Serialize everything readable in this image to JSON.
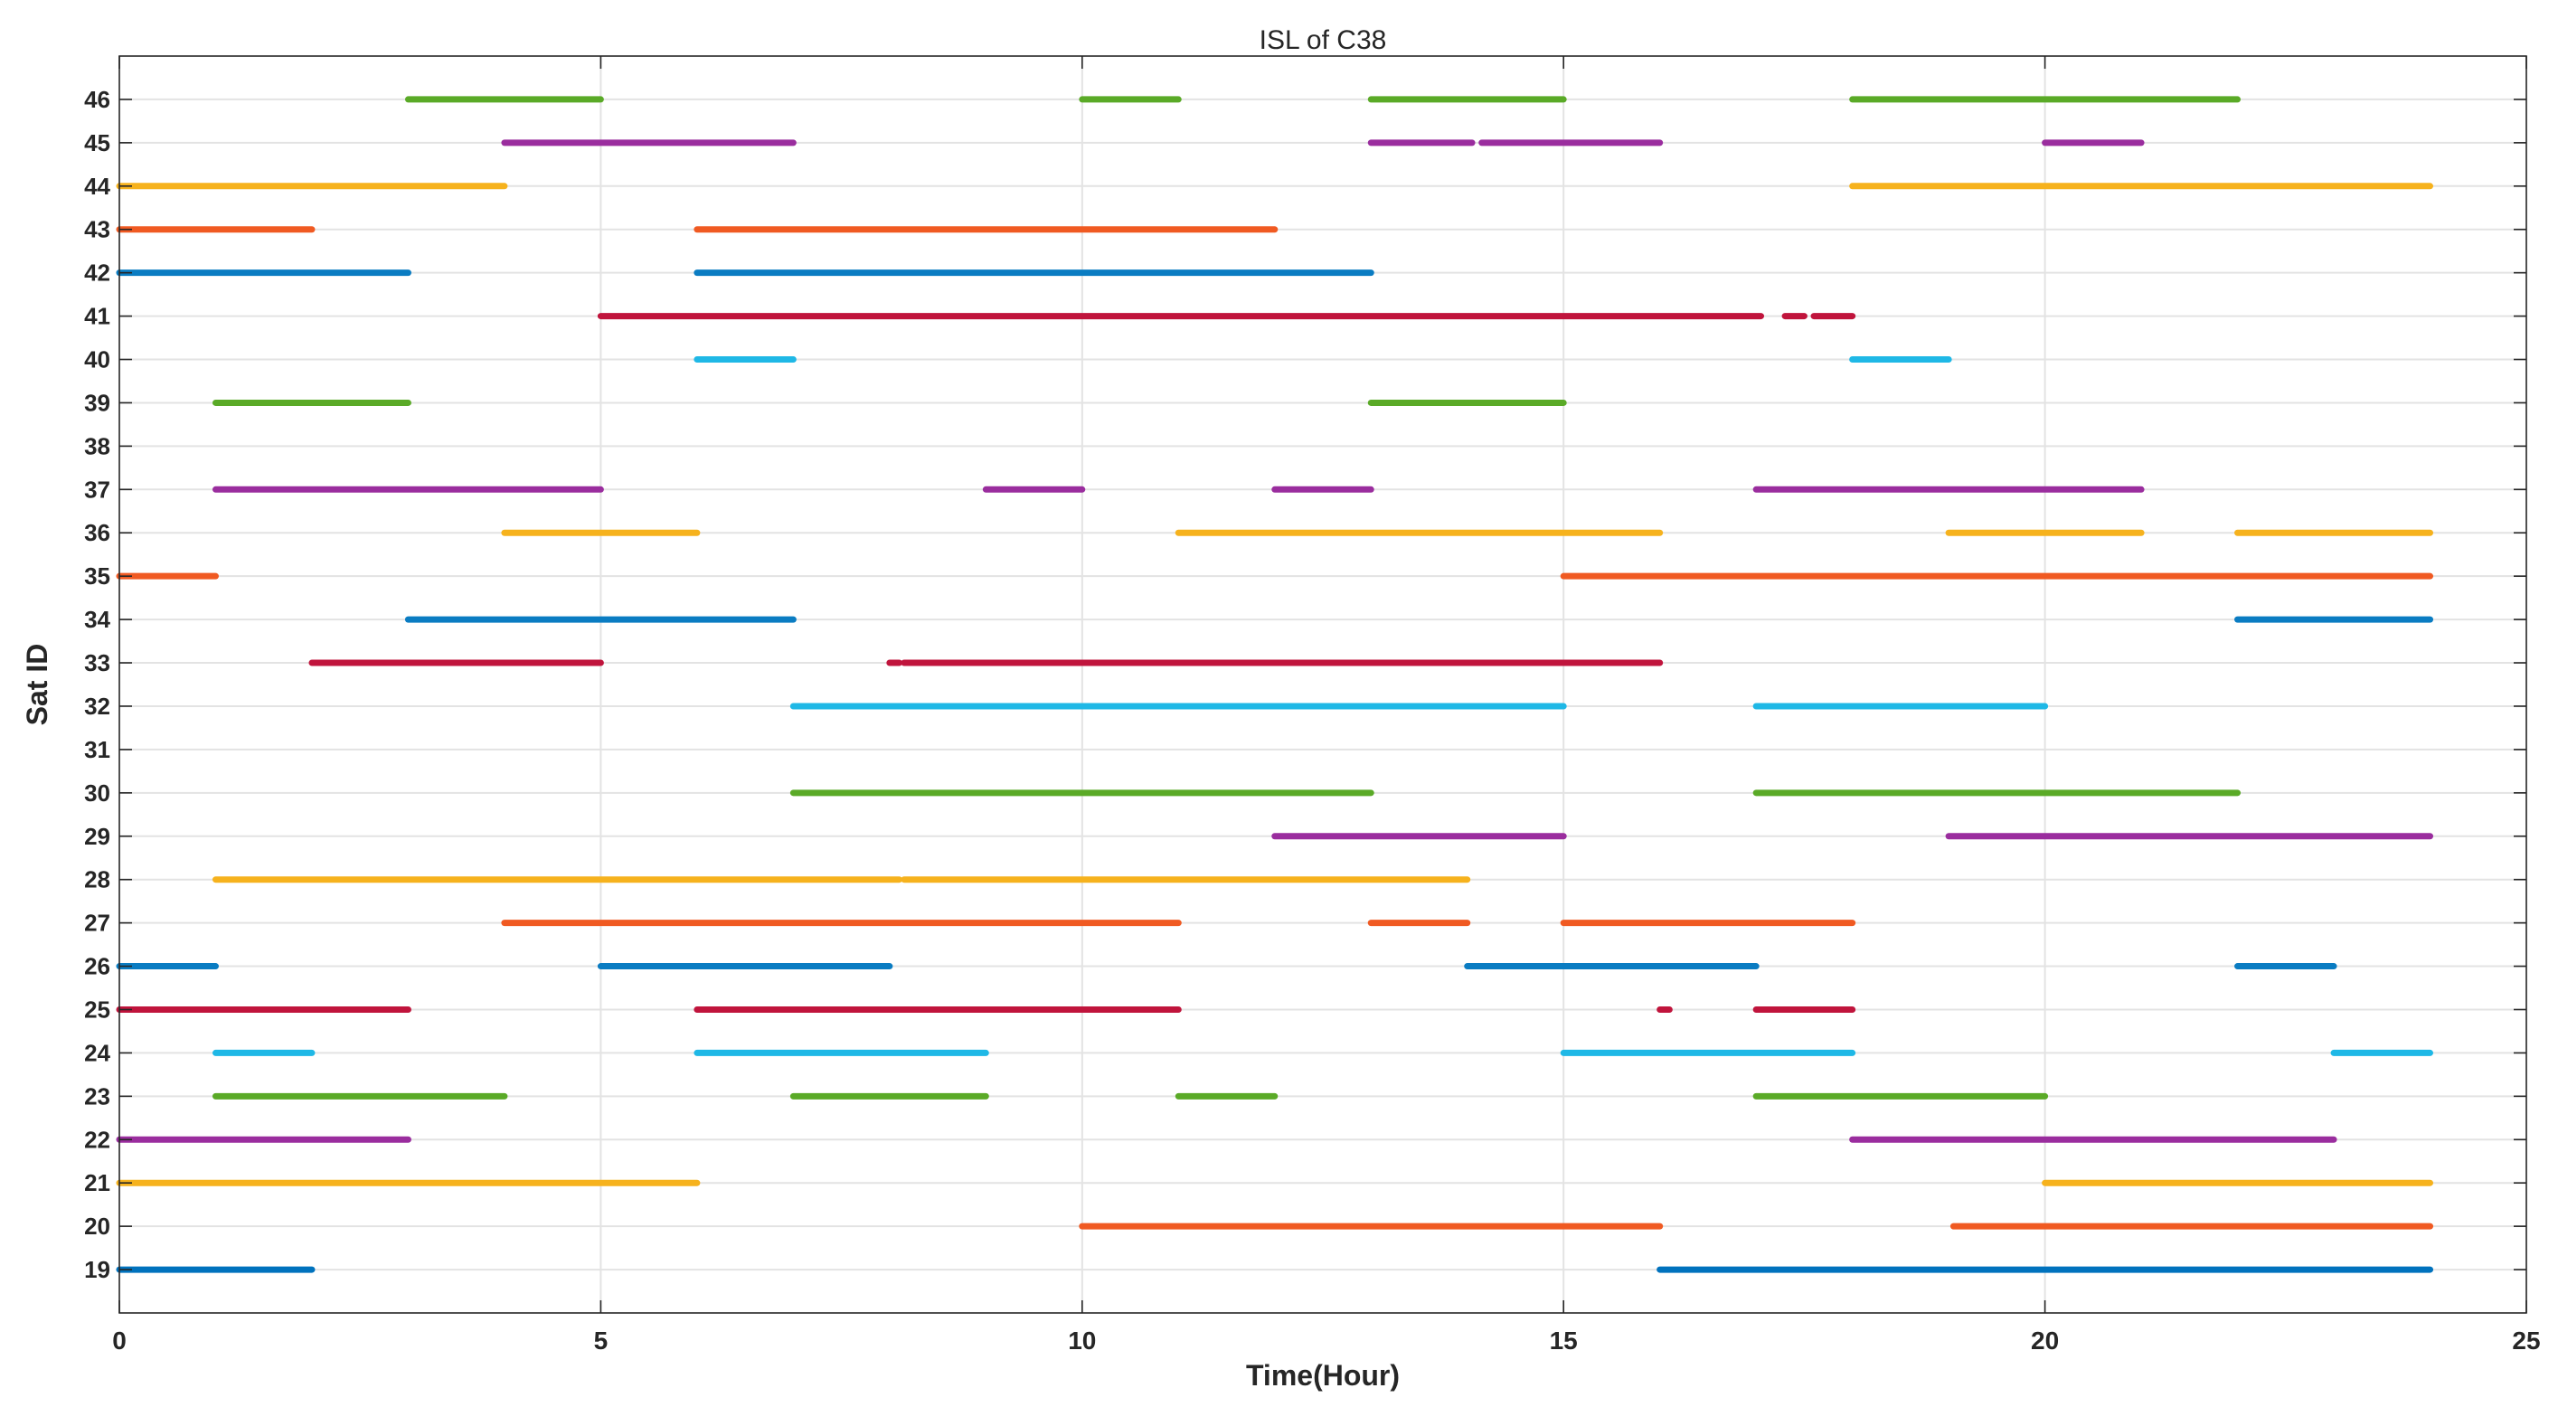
{
  "chart_data": {
    "type": "scatter",
    "title": "ISL of C38",
    "xlabel": "Time(Hour)",
    "ylabel": "Sat ID",
    "xlim": [
      0,
      25
    ],
    "ylim": [
      18,
      47
    ],
    "x_ticks": [
      0,
      5,
      10,
      15,
      20,
      25
    ],
    "y_ticks": [
      19,
      20,
      21,
      22,
      23,
      24,
      25,
      26,
      27,
      28,
      29,
      30,
      31,
      32,
      33,
      34,
      35,
      36,
      37,
      38,
      39,
      40,
      41,
      42,
      43,
      44,
      45,
      46
    ],
    "grid": true,
    "palette": [
      "#0072BD",
      "#D95319",
      "#EDB120",
      "#7E2F8E",
      "#4DAA24",
      "#1FB8E6",
      "#C0143C"
    ],
    "series": [
      {
        "sat": 19,
        "color": "#0072BD",
        "intervals": [
          [
            0,
            2
          ],
          [
            16,
            24
          ]
        ]
      },
      {
        "sat": 20,
        "color": "#F05A22",
        "intervals": [
          [
            10,
            16
          ]
        ]
      },
      {
        "sat": 20,
        "color": "#F05A22",
        "intervals": [
          [
            19.05,
            24
          ]
        ]
      },
      {
        "sat": 21,
        "color": "#F6B21D",
        "intervals": [
          [
            0,
            6
          ],
          [
            20,
            24
          ]
        ]
      },
      {
        "sat": 22,
        "color": "#9A2D9E",
        "intervals": [
          [
            0,
            3
          ],
          [
            18,
            23
          ]
        ]
      },
      {
        "sat": 23,
        "color": "#5AAA27",
        "intervals": [
          [
            1,
            4
          ],
          [
            7,
            9
          ],
          [
            11,
            12
          ],
          [
            17,
            20
          ]
        ]
      },
      {
        "sat": 24,
        "color": "#1FB8E6",
        "intervals": [
          [
            1,
            2
          ],
          [
            6,
            9
          ],
          [
            15,
            18
          ],
          [
            23,
            24
          ]
        ]
      },
      {
        "sat": 25,
        "color": "#C0143C",
        "intervals": [
          [
            0,
            3
          ],
          [
            6,
            11
          ],
          [
            16,
            16.1
          ],
          [
            17,
            18
          ]
        ]
      },
      {
        "sat": 26,
        "color": "#0A7CC2",
        "intervals": [
          [
            0,
            1
          ],
          [
            5,
            8
          ],
          [
            14,
            17
          ],
          [
            22,
            23
          ]
        ]
      },
      {
        "sat": 27,
        "color": "#F05A22",
        "intervals": [
          [
            4,
            11
          ],
          [
            13,
            14
          ],
          [
            15,
            18
          ]
        ]
      },
      {
        "sat": 28,
        "color": "#F6B21D",
        "intervals": [
          [
            1,
            8.1
          ],
          [
            8.15,
            14
          ]
        ]
      },
      {
        "sat": 29,
        "color": "#9A2D9E",
        "intervals": [
          [
            12,
            15
          ],
          [
            19,
            24
          ]
        ]
      },
      {
        "sat": 30,
        "color": "#5AAA27",
        "intervals": [
          [
            7,
            13
          ],
          [
            17,
            22
          ]
        ]
      },
      {
        "sat": 32,
        "color": "#1FB8E6",
        "intervals": [
          [
            7,
            15
          ],
          [
            17,
            20
          ]
        ]
      },
      {
        "sat": 33,
        "color": "#C0143C",
        "intervals": [
          [
            2,
            5
          ],
          [
            8,
            8.1
          ],
          [
            8.15,
            16
          ]
        ]
      },
      {
        "sat": 34,
        "color": "#0A7CC2",
        "intervals": [
          [
            3,
            7
          ],
          [
            22,
            24
          ]
        ]
      },
      {
        "sat": 35,
        "color": "#F05A22",
        "intervals": [
          [
            0,
            1
          ],
          [
            15,
            24
          ]
        ]
      },
      {
        "sat": 36,
        "color": "#F6B21D",
        "intervals": [
          [
            4,
            6
          ],
          [
            11,
            16
          ],
          [
            19,
            21
          ],
          [
            22,
            24
          ]
        ]
      },
      {
        "sat": 37,
        "color": "#9A2D9E",
        "intervals": [
          [
            1,
            5
          ],
          [
            9,
            10
          ],
          [
            12,
            13
          ],
          [
            17,
            21
          ]
        ]
      },
      {
        "sat": 39,
        "color": "#5AAA27",
        "intervals": [
          [
            1,
            3
          ],
          [
            13,
            15
          ]
        ]
      },
      {
        "sat": 40,
        "color": "#1FB8E6",
        "intervals": [
          [
            6,
            7
          ],
          [
            18,
            19
          ]
        ]
      },
      {
        "sat": 41,
        "color": "#C0143C",
        "intervals": [
          [
            5,
            17.05
          ],
          [
            17.3,
            17.5
          ],
          [
            17.6,
            18
          ]
        ]
      },
      {
        "sat": 42,
        "color": "#0A7CC2",
        "intervals": [
          [
            0,
            3
          ],
          [
            6,
            13
          ]
        ]
      },
      {
        "sat": 43,
        "color": "#F05A22",
        "intervals": [
          [
            0,
            2
          ],
          [
            6,
            12
          ]
        ]
      },
      {
        "sat": 44,
        "color": "#F6B21D",
        "intervals": [
          [
            0,
            4
          ],
          [
            18,
            24
          ]
        ]
      },
      {
        "sat": 45,
        "color": "#9A2D9E",
        "intervals": [
          [
            4,
            7
          ],
          [
            13,
            14.05
          ],
          [
            14.15,
            16
          ],
          [
            20,
            21
          ]
        ]
      },
      {
        "sat": 46,
        "color": "#5AAA27",
        "intervals": [
          [
            3,
            5
          ],
          [
            10,
            11
          ],
          [
            13,
            15
          ],
          [
            18,
            22
          ]
        ]
      }
    ]
  }
}
